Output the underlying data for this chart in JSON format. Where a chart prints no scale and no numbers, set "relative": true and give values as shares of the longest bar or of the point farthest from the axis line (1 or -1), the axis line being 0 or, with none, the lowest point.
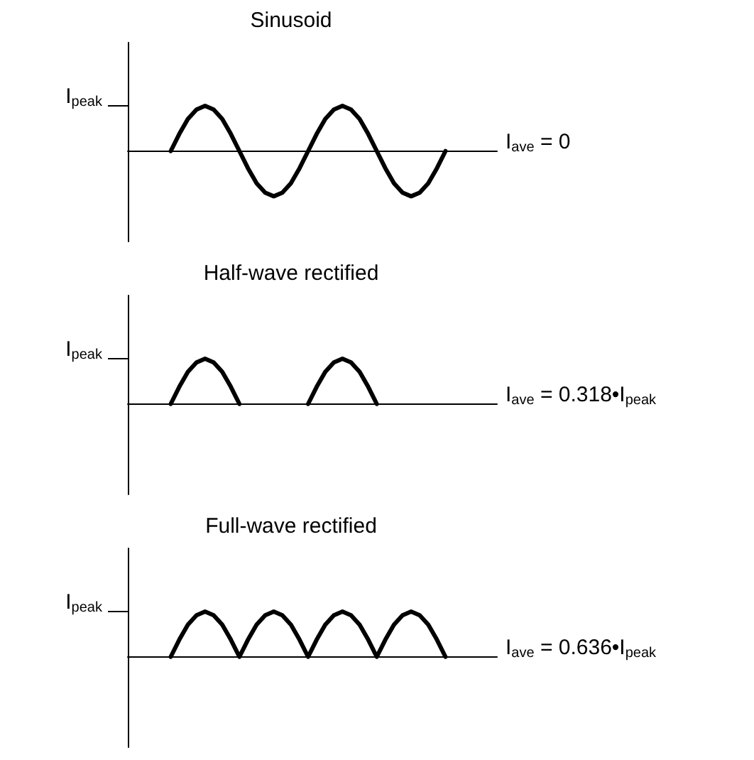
{
  "chart_data": [
    {
      "type": "line",
      "title": "Sinusoid",
      "relative": true,
      "marker": "none",
      "color": "#000000",
      "categories": [
        null,
        null,
        null,
        null,
        null,
        null,
        null,
        null,
        null,
        null,
        null,
        null,
        null,
        null,
        null,
        null,
        null,
        null,
        null,
        null,
        null,
        null,
        null,
        null,
        null,
        null,
        null,
        null,
        null,
        null,
        null,
        null,
        null,
        null,
        null,
        null,
        null,
        null,
        null,
        null,
        null,
        null,
        null,
        null
      ],
      "values": [
        null,
        null,
        null,
        null,
        null,
        0,
        0.38,
        0.71,
        0.92,
        1,
        0.92,
        0.71,
        0.38,
        0,
        -0.38,
        -0.71,
        -0.92,
        -1,
        -0.92,
        -0.71,
        -0.38,
        0,
        0.38,
        0.71,
        0.92,
        1,
        0.92,
        0.71,
        0.38,
        0,
        -0.38,
        -0.71,
        -0.92,
        -1,
        -0.92,
        -0.71,
        -0.38,
        0,
        null,
        null,
        null,
        null,
        null,
        null
      ],
      "annotations": [
        "I$_{peak}$",
        "I$_{ave}$ = 0"
      ]
    },
    {
      "type": "line",
      "title": "Half-wave rectified",
      "relative": true,
      "marker": "none",
      "color": "#000000",
      "categories": [
        null,
        null,
        null,
        null,
        null,
        null,
        null,
        null,
        null,
        null,
        null,
        null,
        null,
        null,
        null,
        null,
        null,
        null,
        null,
        null,
        null,
        null,
        null,
        null,
        null,
        null,
        null,
        null,
        null,
        null,
        null,
        null,
        null,
        null,
        null,
        null,
        null,
        null,
        null,
        null,
        null,
        null,
        null,
        null
      ],
      "values": [
        null,
        null,
        null,
        null,
        null,
        0,
        0.38,
        0.71,
        0.92,
        1,
        0.92,
        0.71,
        0.38,
        0,
        null,
        null,
        null,
        null,
        null,
        null,
        null,
        0,
        0.38,
        0.71,
        0.92,
        1,
        0.92,
        0.71,
        0.38,
        0,
        null,
        null,
        null,
        null,
        null,
        null,
        null,
        null,
        null,
        null,
        null,
        null,
        null,
        null
      ],
      "annotations": [
        "I$_{peak}$",
        "I$_{ave}$ = 0.318•I$_{peak}$"
      ]
    },
    {
      "type": "line",
      "title": "Full-wave rectified",
      "relative": true,
      "marker": "none",
      "color": "#000000",
      "categories": [
        null,
        null,
        null,
        null,
        null,
        null,
        null,
        null,
        null,
        null,
        null,
        null,
        null,
        null,
        null,
        null,
        null,
        null,
        null,
        null,
        null,
        null,
        null,
        null,
        null,
        null,
        null,
        null,
        null,
        null,
        null,
        null,
        null,
        null,
        null,
        null,
        null,
        null,
        null,
        null,
        null,
        null,
        null,
        null
      ],
      "values": [
        null,
        null,
        null,
        null,
        null,
        0,
        0.38,
        0.71,
        0.92,
        1,
        0.92,
        0.71,
        0.38,
        0,
        0.38,
        0.71,
        0.92,
        1,
        0.92,
        0.71,
        0.38,
        0,
        0.38,
        0.71,
        0.92,
        1,
        0.92,
        0.71,
        0.38,
        0,
        0.38,
        0.71,
        0.92,
        1,
        0.92,
        0.71,
        0.38,
        0,
        null,
        null,
        null,
        null,
        null,
        null
      ],
      "annotations": [
        "I$_{peak}$",
        "I$_{ave}$ = 0.636•I$_{peak}$"
      ]
    }
  ]
}
